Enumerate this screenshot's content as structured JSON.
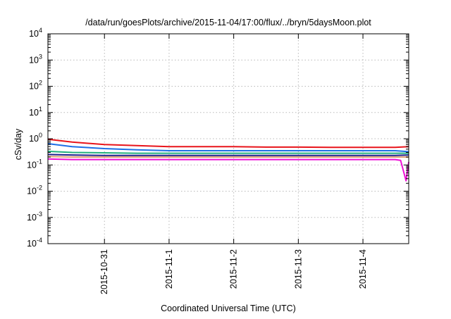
{
  "chart_data": {
    "type": "line",
    "title": "/data/run/goesPlots/archive/2015-11-04/17:00/flux/../bryn/5daysMoon.plot",
    "xlabel": "Coordinated Universal Time (UTC)",
    "ylabel": "cSv/day",
    "yscale": "log",
    "ylim": [
      0.0001,
      10000
    ],
    "y_ticks": [
      {
        "exp": "-4",
        "value": 0.0001
      },
      {
        "exp": "-3",
        "value": 0.001
      },
      {
        "exp": "-2",
        "value": 0.01
      },
      {
        "exp": "-1",
        "value": 0.1
      },
      {
        "exp": "0",
        "value": 1
      },
      {
        "exp": "1",
        "value": 10
      },
      {
        "exp": "2",
        "value": 100
      },
      {
        "exp": "3",
        "value": 1000
      },
      {
        "exp": "4",
        "value": 10000
      }
    ],
    "y_tick_base": "10",
    "xlim": [
      "2015-10-30T03:00",
      "2015-11-04T17:00"
    ],
    "x_ticks": [
      {
        "label": "2015-10-31",
        "date": "2015-10-31T00:00"
      },
      {
        "label": "2015-11-1",
        "date": "2015-11-01T00:00"
      },
      {
        "label": "2015-11-2",
        "date": "2015-11-02T00:00"
      },
      {
        "label": "2015-11-3",
        "date": "2015-11-03T00:00"
      },
      {
        "label": "2015-11-4",
        "date": "2015-11-04T00:00"
      }
    ],
    "grid": true,
    "series": [
      {
        "color": "#e8141b",
        "x": [
          "2015-10-30T03:00",
          "2015-10-30T12:00",
          "2015-10-31T00:00",
          "2015-10-31T12:00",
          "2015-11-01T00:00",
          "2015-11-01T12:00",
          "2015-11-02T00:00",
          "2015-11-02T12:00",
          "2015-11-03T00:00",
          "2015-11-03T12:00",
          "2015-11-04T00:00",
          "2015-11-04T12:00",
          "2015-11-04T17:00"
        ],
        "y": [
          0.95,
          0.75,
          0.6,
          0.55,
          0.5,
          0.5,
          0.5,
          0.48,
          0.48,
          0.47,
          0.47,
          0.47,
          0.5
        ]
      },
      {
        "color": "#1f6fe6",
        "x": [
          "2015-10-30T03:00",
          "2015-10-30T12:00",
          "2015-10-31T00:00",
          "2015-10-31T12:00",
          "2015-11-01T00:00",
          "2015-11-01T12:00",
          "2015-11-02T00:00",
          "2015-11-02T12:00",
          "2015-11-03T00:00",
          "2015-11-03T12:00",
          "2015-11-04T00:00",
          "2015-11-04T12:00",
          "2015-11-04T17:00"
        ],
        "y": [
          0.65,
          0.5,
          0.42,
          0.38,
          0.35,
          0.35,
          0.35,
          0.35,
          0.35,
          0.35,
          0.35,
          0.35,
          0.32
        ]
      },
      {
        "color": "#22b07d",
        "x": [
          "2015-10-30T03:00",
          "2015-10-30T12:00",
          "2015-10-31T00:00",
          "2015-10-31T12:00",
          "2015-11-01T00:00",
          "2015-11-01T12:00",
          "2015-11-02T00:00",
          "2015-11-02T12:00",
          "2015-11-03T00:00",
          "2015-11-03T12:00",
          "2015-11-04T00:00",
          "2015-11-04T12:00",
          "2015-11-04T17:00"
        ],
        "y": [
          0.33,
          0.3,
          0.29,
          0.28,
          0.28,
          0.28,
          0.28,
          0.28,
          0.28,
          0.28,
          0.28,
          0.28,
          0.28
        ]
      },
      {
        "color": "#1e1e8c",
        "x": [
          "2015-10-30T03:00",
          "2015-10-30T12:00",
          "2015-10-31T00:00",
          "2015-10-31T12:00",
          "2015-11-01T00:00",
          "2015-11-01T12:00",
          "2015-11-02T00:00",
          "2015-11-02T12:00",
          "2015-11-03T00:00",
          "2015-11-03T12:00",
          "2015-11-04T00:00",
          "2015-11-04T12:00",
          "2015-11-04T17:00"
        ],
        "y": [
          0.25,
          0.24,
          0.23,
          0.23,
          0.23,
          0.23,
          0.23,
          0.23,
          0.23,
          0.23,
          0.23,
          0.23,
          0.24
        ]
      },
      {
        "color": "#e0a07a",
        "x": [
          "2015-10-30T03:00",
          "2015-10-30T12:00",
          "2015-10-31T00:00",
          "2015-10-31T12:00",
          "2015-11-01T00:00",
          "2015-11-01T12:00",
          "2015-11-02T00:00",
          "2015-11-02T12:00",
          "2015-11-03T00:00",
          "2015-11-03T12:00",
          "2015-11-04T00:00",
          "2015-11-04T12:00",
          "2015-11-04T17:00"
        ],
        "y": [
          0.21,
          0.2,
          0.2,
          0.2,
          0.2,
          0.2,
          0.2,
          0.2,
          0.2,
          0.2,
          0.2,
          0.2,
          0.2
        ]
      },
      {
        "color": "#ee10d6",
        "x": [
          "2015-10-30T03:00",
          "2015-10-30T12:00",
          "2015-10-31T00:00",
          "2015-10-31T12:00",
          "2015-11-01T00:00",
          "2015-11-01T12:00",
          "2015-11-02T00:00",
          "2015-11-02T12:00",
          "2015-11-03T00:00",
          "2015-11-03T12:00",
          "2015-11-04T00:00",
          "2015-11-04T12:00",
          "2015-11-04T14:00",
          "2015-11-04T16:00",
          "2015-11-04T17:00"
        ],
        "y": [
          0.17,
          0.16,
          0.16,
          0.16,
          0.16,
          0.16,
          0.16,
          0.16,
          0.16,
          0.16,
          0.16,
          0.16,
          0.15,
          0.025,
          0.13
        ]
      }
    ]
  }
}
